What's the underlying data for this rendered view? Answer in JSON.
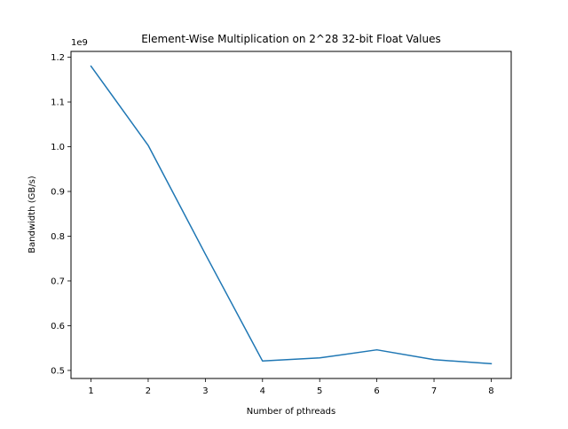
{
  "chart_data": {
    "type": "line",
    "title": "Element-Wise Multiplication on 2^28 32-bit Float Values",
    "xlabel": "Number of pthreads",
    "ylabel": "Bandwidth (GB/s)",
    "offset_text": "1e9",
    "x": [
      1,
      2,
      3,
      4,
      5,
      6,
      7,
      8
    ],
    "series": [
      {
        "values": [
          1180000000,
          1003000000,
          760000000,
          521000000,
          528000000,
          546000000,
          524000000,
          515000000
        ],
        "color": "#1f77b4"
      }
    ],
    "xlim": [
      0.65,
      8.35
    ],
    "ylim": [
      482000000.0,
      1213000000.0
    ],
    "xticks": [
      1,
      2,
      3,
      4,
      5,
      6,
      7,
      8
    ],
    "xtick_labels": [
      "1",
      "2",
      "3",
      "4",
      "5",
      "6",
      "7",
      "8"
    ],
    "yticks": [
      500000000.0,
      600000000.0,
      700000000.0,
      800000000.0,
      900000000.0,
      1000000000.0,
      1100000000.0,
      1200000000.0
    ],
    "ytick_labels": [
      "0.5",
      "0.6",
      "0.7",
      "0.8",
      "0.9",
      "1.0",
      "1.1",
      "1.2"
    ],
    "grid": false,
    "legend": "none"
  }
}
